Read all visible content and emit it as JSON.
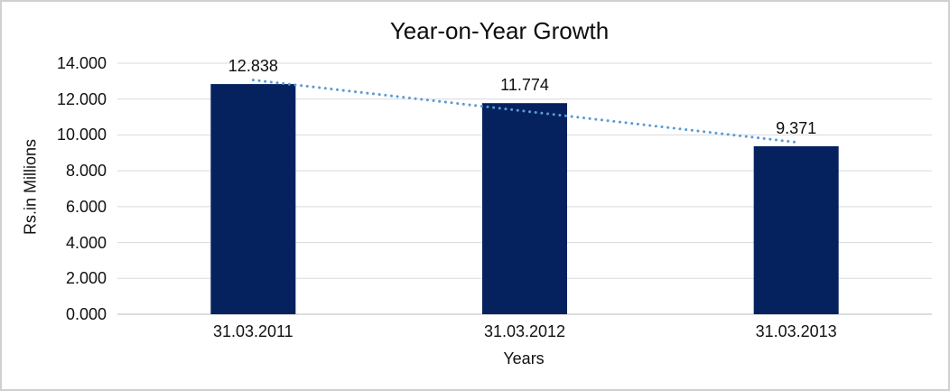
{
  "chart_data": {
    "type": "bar",
    "title": "Year-on-Year Growth",
    "xlabel": "Years",
    "ylabel": "Rs.in Millions",
    "categories": [
      "31.03.2011",
      "31.03.2012",
      "31.03.2013"
    ],
    "values": [
      12.838,
      11.774,
      9.371
    ],
    "data_labels": [
      "12.838",
      "11.774",
      "9.371"
    ],
    "ylim": [
      0,
      14
    ],
    "ytick_values": [
      0,
      2,
      4,
      6,
      8,
      10,
      12,
      14
    ],
    "ytick_labels": [
      "0.000",
      "2.000",
      "4.000",
      "6.000",
      "8.000",
      "10.000",
      "12.000",
      "14.000"
    ],
    "grid": true,
    "legend": "none",
    "trendline": {
      "type": "linear",
      "style": "dotted",
      "color": "#5b9bd5"
    },
    "colors": {
      "bar": "#05215e",
      "gridline": "#d9d9d9",
      "axis_line": "#c9c9c9",
      "text": "#111111",
      "background": "#ffffff",
      "border": "#d0d0d0"
    }
  }
}
